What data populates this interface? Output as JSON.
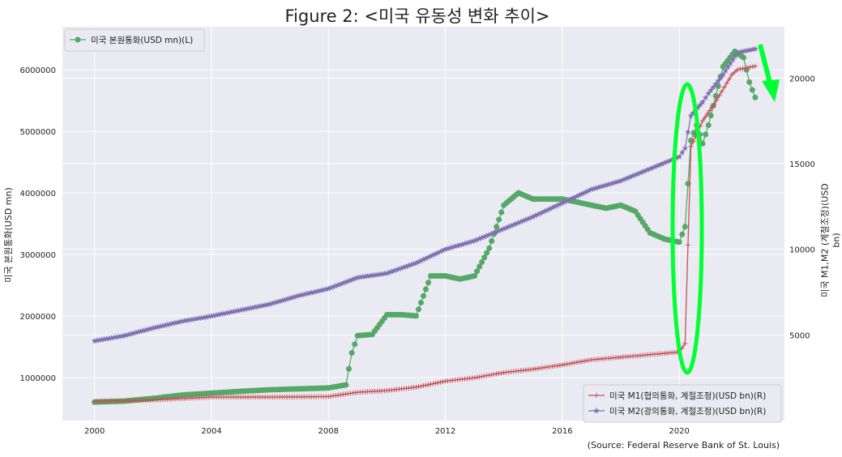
{
  "chart_data": {
    "type": "line",
    "title": "Figure 2: <미국 유동성 변화 추이>",
    "source": "(Source: Federal Reserve Bank of St. Louis)",
    "xlabel": "",
    "x_ticks": [
      "2000",
      "2004",
      "2008",
      "2012",
      "2016",
      "2020"
    ],
    "xlim": [
      1998.9,
      2023.6
    ],
    "left_axis": {
      "label": "미국 본원통화(USD mn)",
      "ylim": [
        300000,
        6700000
      ],
      "ticks": [
        "1000000",
        "2000000",
        "3000000",
        "4000000",
        "5000000",
        "6000000"
      ]
    },
    "right_axis": {
      "label": "미국 M1,M2 (계절조정)(USD bn)",
      "ylim": [
        0,
        23000
      ],
      "ticks": [
        "5000",
        "10000",
        "15000",
        "20000"
      ]
    },
    "grid": true,
    "legend_left": {
      "placement": "top-left",
      "entries": [
        "미국 본원통화(USD mn)(L)"
      ]
    },
    "legend_right": {
      "placement": "bottom-right",
      "entries": [
        "미국 M1(협의통화, 계절조정)(USD bn)(R)",
        "미국 M2(광의통화, 계절조정)(USD bn)(R)"
      ]
    },
    "series": [
      {
        "name": "미국 본원통화(USD mn)(L)",
        "axis": "left",
        "color": "#55a868",
        "marker": "circle",
        "points": [
          [
            2000.0,
            600000
          ],
          [
            2001.0,
            615000
          ],
          [
            2002.0,
            660000
          ],
          [
            2003.0,
            715000
          ],
          [
            2004.0,
            745000
          ],
          [
            2005.0,
            775000
          ],
          [
            2006.0,
            800000
          ],
          [
            2007.0,
            815000
          ],
          [
            2008.0,
            830000
          ],
          [
            2008.6,
            880000
          ],
          [
            2008.8,
            1400000
          ],
          [
            2009.0,
            1680000
          ],
          [
            2009.5,
            1700000
          ],
          [
            2010.0,
            2020000
          ],
          [
            2010.5,
            2020000
          ],
          [
            2011.0,
            2000000
          ],
          [
            2011.5,
            2650000
          ],
          [
            2012.0,
            2650000
          ],
          [
            2012.5,
            2600000
          ],
          [
            2013.0,
            2650000
          ],
          [
            2013.5,
            3100000
          ],
          [
            2014.0,
            3800000
          ],
          [
            2014.5,
            4000000
          ],
          [
            2015.0,
            3900000
          ],
          [
            2015.5,
            3900000
          ],
          [
            2016.0,
            3900000
          ],
          [
            2016.5,
            3850000
          ],
          [
            2017.0,
            3800000
          ],
          [
            2017.5,
            3750000
          ],
          [
            2018.0,
            3800000
          ],
          [
            2018.5,
            3700000
          ],
          [
            2019.0,
            3350000
          ],
          [
            2019.5,
            3250000
          ],
          [
            2020.0,
            3200000
          ],
          [
            2020.2,
            3450000
          ],
          [
            2020.4,
            4850000
          ],
          [
            2020.6,
            5100000
          ],
          [
            2020.8,
            4800000
          ],
          [
            2021.0,
            5100000
          ],
          [
            2021.5,
            6050000
          ],
          [
            2021.9,
            6300000
          ],
          [
            2022.2,
            6200000
          ],
          [
            2022.4,
            5800000
          ],
          [
            2022.6,
            5550000
          ]
        ]
      },
      {
        "name": "미국 M1(협의통화, 계절조정)(USD bn)(R)",
        "axis": "right",
        "color": "#c44e52",
        "marker": "plus",
        "points": [
          [
            2000.0,
            1120
          ],
          [
            2002.0,
            1200
          ],
          [
            2004.0,
            1370
          ],
          [
            2006.0,
            1370
          ],
          [
            2008.0,
            1400
          ],
          [
            2009.0,
            1650
          ],
          [
            2010.0,
            1750
          ],
          [
            2011.0,
            1950
          ],
          [
            2012.0,
            2300
          ],
          [
            2013.0,
            2500
          ],
          [
            2014.0,
            2800
          ],
          [
            2015.0,
            3000
          ],
          [
            2016.0,
            3250
          ],
          [
            2017.0,
            3550
          ],
          [
            2018.0,
            3700
          ],
          [
            2019.0,
            3850
          ],
          [
            2020.0,
            4000
          ],
          [
            2020.2,
            4500
          ],
          [
            2020.4,
            16000
          ],
          [
            2020.8,
            17500
          ],
          [
            2021.2,
            18500
          ],
          [
            2021.8,
            20200
          ],
          [
            2022.0,
            20500
          ],
          [
            2022.6,
            20700
          ]
        ]
      },
      {
        "name": "미국 M2(광의통화, 계절조정)(USD bn)(R)",
        "axis": "right",
        "color": "#8172b2",
        "marker": "star",
        "points": [
          [
            2000.0,
            4650
          ],
          [
            2001.0,
            4950
          ],
          [
            2002.0,
            5400
          ],
          [
            2003.0,
            5800
          ],
          [
            2004.0,
            6100
          ],
          [
            2005.0,
            6450
          ],
          [
            2006.0,
            6800
          ],
          [
            2007.0,
            7300
          ],
          [
            2008.0,
            7700
          ],
          [
            2009.0,
            8350
          ],
          [
            2010.0,
            8600
          ],
          [
            2011.0,
            9200
          ],
          [
            2012.0,
            10000
          ],
          [
            2013.0,
            10500
          ],
          [
            2014.0,
            11200
          ],
          [
            2015.0,
            11900
          ],
          [
            2016.0,
            12700
          ],
          [
            2017.0,
            13500
          ],
          [
            2018.0,
            14000
          ],
          [
            2019.0,
            14700
          ],
          [
            2020.0,
            15400
          ],
          [
            2020.2,
            15900
          ],
          [
            2020.4,
            17800
          ],
          [
            2020.8,
            18600
          ],
          [
            2021.0,
            19100
          ],
          [
            2021.5,
            20200
          ],
          [
            2022.0,
            21500
          ],
          [
            2022.6,
            21700
          ]
        ]
      }
    ]
  }
}
